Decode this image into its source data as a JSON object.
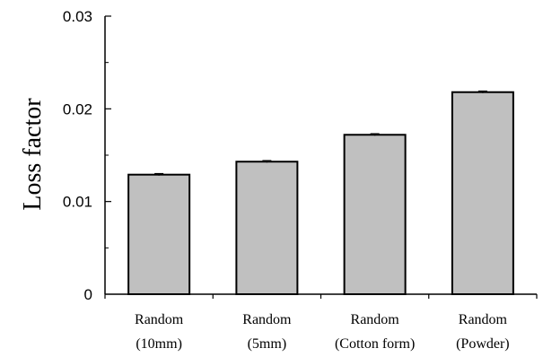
{
  "chart_data": {
    "type": "bar",
    "title": "",
    "xlabel": "",
    "ylabel": "Loss factor",
    "ylim": [
      0,
      0.03
    ],
    "yticks": [
      "0",
      "0.01",
      "0.02",
      "0.03"
    ],
    "ytick_values": [
      0,
      0.01,
      0.02,
      0.03
    ],
    "grid": false,
    "legend": "none",
    "bar_color": "#c0c0c0",
    "categories": [
      {
        "line1": "Random",
        "line2": "(10mm)"
      },
      {
        "line1": "Random",
        "line2": "(5mm)"
      },
      {
        "line1": "Random",
        "line2": "(Cotton form)"
      },
      {
        "line1": "Random",
        "line2": "(Powder)"
      }
    ],
    "values": [
      0.0129,
      0.0143,
      0.0172,
      0.0218
    ],
    "errors": [
      0.0001,
      0.0001,
      0.0001,
      0.0001
    ]
  }
}
